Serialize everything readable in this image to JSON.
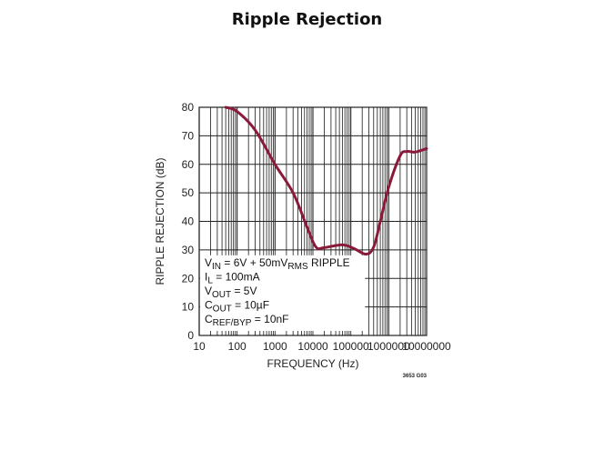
{
  "page": {
    "title": "Ripple Rejection"
  },
  "chart_data": {
    "type": "line",
    "title": "Ripple Rejection",
    "xlabel": "FREQUENCY (Hz)",
    "ylabel": "RIPPLE REJECTION (dB)",
    "xscale": "log",
    "xlim": [
      10,
      10000000
    ],
    "ylim": [
      0,
      80
    ],
    "x_ticks": [
      "10",
      "100",
      "1000",
      "10000",
      "100000",
      "1000000",
      "10000000"
    ],
    "y_ticks": [
      "0",
      "10",
      "20",
      "30",
      "40",
      "50",
      "60",
      "70",
      "80"
    ],
    "grid": true,
    "series": [
      {
        "name": "Ripple Rejection",
        "color": "#8b1a3a",
        "x": [
          50,
          100,
          300,
          1000,
          3000,
          7000,
          12000,
          20000,
          60000,
          120000,
          250000,
          400000,
          600000,
          1000000,
          2000000,
          3000000,
          5000000,
          10000000
        ],
        "y": [
          80,
          78.5,
          72,
          60,
          50,
          38,
          31,
          30.8,
          31.8,
          30.5,
          28.5,
          31,
          40,
          52,
          63,
          64.5,
          64.3,
          65.5
        ]
      }
    ],
    "annotation": {
      "lines": [
        {
          "main": "V",
          "sub": "IN",
          "rest": " = 6V + 50mV",
          "sub2": "RMS",
          "rest2": " RIPPLE"
        },
        {
          "main": "I",
          "sub": "L",
          "rest": " = 100mA",
          "sub2": "",
          "rest2": ""
        },
        {
          "main": "V",
          "sub": "OUT",
          "rest": " = 5V",
          "sub2": "",
          "rest2": ""
        },
        {
          "main": "C",
          "sub": "OUT",
          "rest": " = 10µF",
          "sub2": "",
          "rest2": ""
        },
        {
          "main": "C",
          "sub": "REF/BYP",
          "rest": " = 10nF",
          "sub2": "",
          "rest2": ""
        }
      ]
    },
    "figure_code": "3653 G03"
  }
}
